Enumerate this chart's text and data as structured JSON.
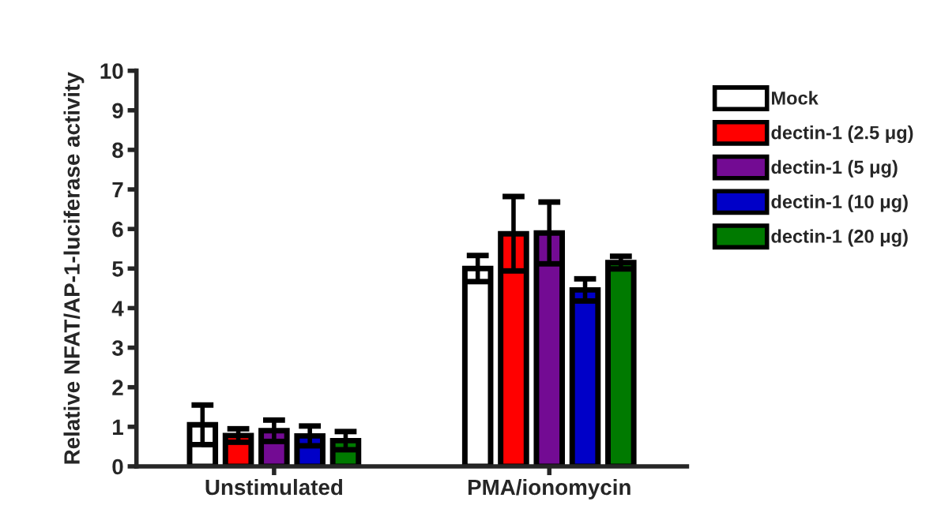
{
  "chart_data": {
    "type": "bar",
    "ylabel": "Relative NFAT/AP-1-luciferase activity",
    "categories": [
      "Unstimulated",
      "PMA/ionomycin"
    ],
    "series": [
      {
        "name": "Mock",
        "color": "#ffffff",
        "values": [
          1.05,
          5.0
        ],
        "errors": [
          0.5,
          0.33
        ]
      },
      {
        "name": "dectin-1 (2.5 μg)",
        "color": "#ff0000",
        "values": [
          0.78,
          5.88
        ],
        "errors": [
          0.17,
          0.94
        ]
      },
      {
        "name": "dectin-1 (5 μg)",
        "color": "#730b93",
        "values": [
          0.9,
          5.9
        ],
        "errors": [
          0.27,
          0.78
        ]
      },
      {
        "name": "dectin-1 (10 μg)",
        "color": "#0000c8",
        "values": [
          0.77,
          4.46
        ],
        "errors": [
          0.25,
          0.28
        ]
      },
      {
        "name": "dectin-1 (20 μg)",
        "color": "#007a00",
        "values": [
          0.65,
          5.15
        ],
        "errors": [
          0.23,
          0.16
        ]
      }
    ],
    "ylim": [
      0,
      10
    ],
    "yticks": [
      0,
      1,
      2,
      3,
      4,
      5,
      6,
      7,
      8,
      9,
      10
    ],
    "legend": "top right",
    "grid": false
  }
}
